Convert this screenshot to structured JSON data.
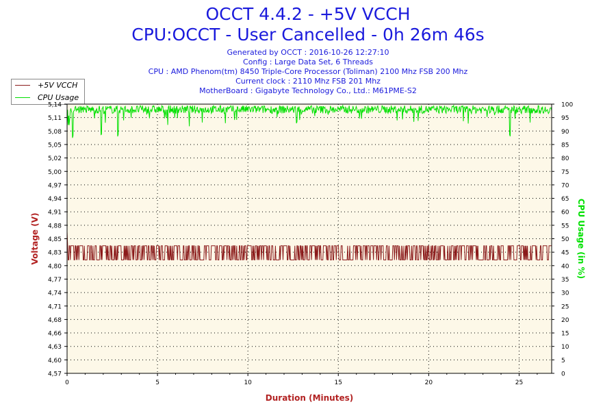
{
  "title": "OCCT 4.4.2 - +5V VCCH",
  "subtitle": "CPU:OCCT - User Cancelled - 0h 26m 46s",
  "info_lines": [
    "Generated by OCCT : 2016-10-26 12:27:10",
    "Config : Large Data Set, 6 Threads",
    "CPU : AMD Phenom(tm) 8450 Triple-Core Processor (Toliman) 2100 Mhz FSB 200 Mhz",
    "Current clock : 2110 Mhz FSB 201 Mhz",
    "MotherBoard : Gigabyte Technology Co., Ltd.: M61PME-S2"
  ],
  "colors": {
    "voltage": "#8b1a1a",
    "cpu": "#00e000",
    "plot_bg": "#fdf8e8",
    "title": "#1a1adc",
    "axis_label": "#b22222"
  },
  "chart_data": {
    "type": "line",
    "title": "OCCT 4.4.2 - +5V VCCH",
    "xlabel": "Duration (Minutes)",
    "ylabel": "Voltage (V)",
    "y2label": "CPU Usage (in %)",
    "xlim": [
      0,
      26.8
    ],
    "ylim": [
      4.57,
      5.14
    ],
    "y2lim": [
      0,
      100
    ],
    "x_ticks": [
      "0",
      "5",
      "10",
      "15",
      "20",
      "25"
    ],
    "y_ticks": [
      "4,57",
      "4,60",
      "4,63",
      "4,66",
      "4,68",
      "4,71",
      "4,74",
      "4,77",
      "4,80",
      "4,83",
      "4,85",
      "4,88",
      "4,91",
      "4,94",
      "4,97",
      "5,00",
      "5,02",
      "5,05",
      "5,08",
      "5,11",
      "5,14"
    ],
    "y2_ticks": [
      "0",
      "5",
      "10",
      "15",
      "20",
      "25",
      "30",
      "35",
      "40",
      "45",
      "50",
      "55",
      "60",
      "65",
      "70",
      "75",
      "80",
      "85",
      "90",
      "95",
      "100"
    ],
    "grid": true,
    "legend_position": "top-left",
    "series": [
      {
        "name": "+5V VCCH",
        "axis": "left",
        "description_values": {
          "low": 4.81,
          "high": 4.84,
          "pattern": "rapid alternation between low and high across full duration"
        }
      },
      {
        "name": "CPU Usage",
        "axis": "right",
        "description_values": {
          "typical": 98,
          "min_observed": 87,
          "dips_at_minutes": [
            0.3,
            1.9,
            2.8,
            24.5
          ]
        }
      }
    ]
  }
}
